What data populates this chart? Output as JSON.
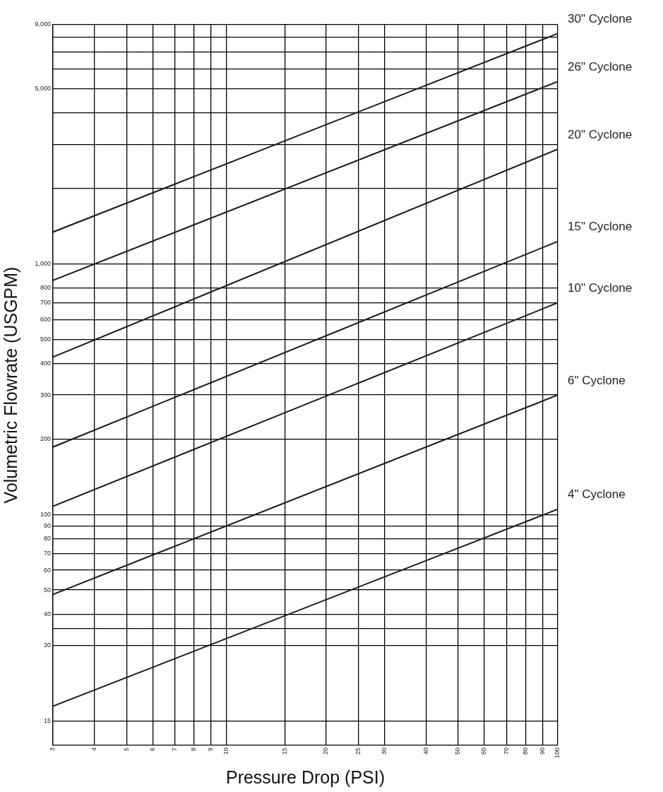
{
  "chart_data": {
    "type": "line",
    "xlabel": "Pressure Drop (PSI)",
    "ylabel": "Volumetric Flowrate (USGPM)",
    "log": "xy",
    "grid": true,
    "legend": false,
    "marker": "none",
    "line_style": "solid",
    "xlim": [
      3,
      100
    ],
    "xticks": [
      3,
      4,
      5,
      6,
      7,
      8,
      9,
      10,
      15,
      20,
      25,
      30,
      40,
      50,
      60,
      70,
      80,
      90,
      100
    ],
    "ylim": [
      12,
      9000
    ],
    "yticks": [
      {
        "value": 15,
        "label": "15"
      },
      30,
      {
        "value": 35,
        "label": null
      },
      40,
      50,
      60,
      70,
      80,
      90,
      100,
      200,
      300,
      400,
      500,
      600,
      700,
      800,
      {
        "value": 1000,
        "label": "1,000"
      },
      {
        "value": 2000,
        "label": null
      },
      {
        "value": 3000,
        "label": null
      },
      {
        "value": 4000,
        "label": null
      },
      {
        "value": 5000,
        "label": "5,000"
      },
      {
        "value": 6000,
        "label": null
      },
      {
        "value": 7000,
        "label": null
      },
      {
        "value": 8000,
        "label": null
      },
      {
        "value": 9000,
        "label": "9,000"
      }
    ],
    "x": [
      3,
      100
    ],
    "series": [
      {
        "name": "30\" Cyclone",
        "color": "#1a1a1a",
        "values": [
          1340,
          8300
        ]
      },
      {
        "name": "26\" Cyclone",
        "color": "#1a1a1a",
        "values": [
          860,
          5340
        ]
      },
      {
        "name": "20\" Cyclone",
        "color": "#1a1a1a",
        "values": [
          425,
          2870
        ]
      },
      {
        "name": "15\" Cyclone",
        "color": "#1a1a1a",
        "values": [
          186,
          1230
        ]
      },
      {
        "name": "10\" Cyclone",
        "color": "#1a1a1a",
        "values": [
          108,
          700
        ]
      },
      {
        "name": "6\" Cyclone",
        "color": "#1a1a1a",
        "values": [
          48,
          300
        ]
      },
      {
        "name": "4\" Cyclone",
        "color": "#1a1a1a",
        "values": [
          17.2,
          105
        ]
      }
    ]
  }
}
